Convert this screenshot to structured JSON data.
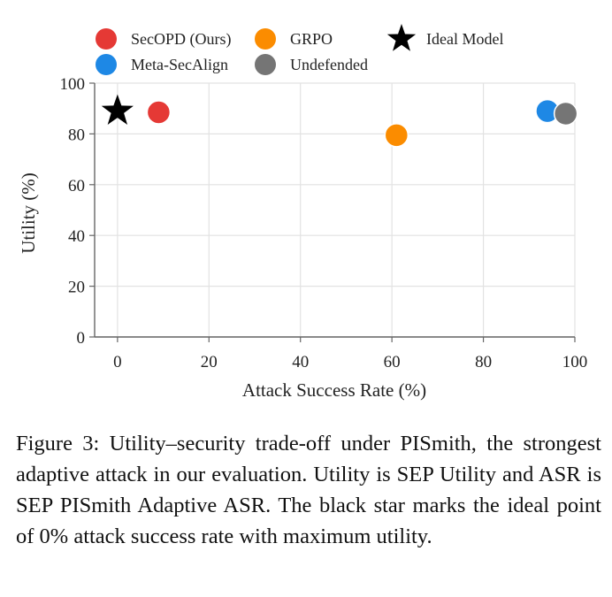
{
  "chart_data": {
    "type": "scatter",
    "title": "",
    "xlabel": "Attack Success Rate (%)",
    "ylabel": "Utility (%)",
    "xlim": [
      -5,
      100
    ],
    "ylim": [
      0,
      100
    ],
    "xticks": [
      0,
      20,
      40,
      60,
      80,
      100
    ],
    "yticks": [
      0,
      20,
      40,
      60,
      80,
      100
    ],
    "grid": true,
    "legend_position": "top",
    "series": [
      {
        "name": "SecOPD (Ours)",
        "color": "#e53935",
        "marker": "circle",
        "points": [
          {
            "x": 9,
            "y": 88.5
          }
        ]
      },
      {
        "name": "GRPO",
        "color": "#fb8c00",
        "marker": "circle",
        "points": [
          {
            "x": 61,
            "y": 79.5
          }
        ]
      },
      {
        "name": "Ideal Model",
        "color": "#000000",
        "marker": "star",
        "points": [
          {
            "x": 0,
            "y": 89
          }
        ]
      },
      {
        "name": "Meta-SecAlign",
        "color": "#1e88e5",
        "marker": "circle",
        "points": [
          {
            "x": 94,
            "y": 89
          }
        ]
      },
      {
        "name": "Undefended",
        "color": "#757575",
        "marker": "circle",
        "points": [
          {
            "x": 98,
            "y": 88
          }
        ]
      }
    ]
  },
  "caption": "Figure 3: Utility–security trade-off under PISmith, the strongest adaptive attack in our evaluation. Utility is SEP Utility and ASR is SEP PISmith Adaptive ASR. The black star marks the ideal point of 0% attack success rate with maximum utility."
}
